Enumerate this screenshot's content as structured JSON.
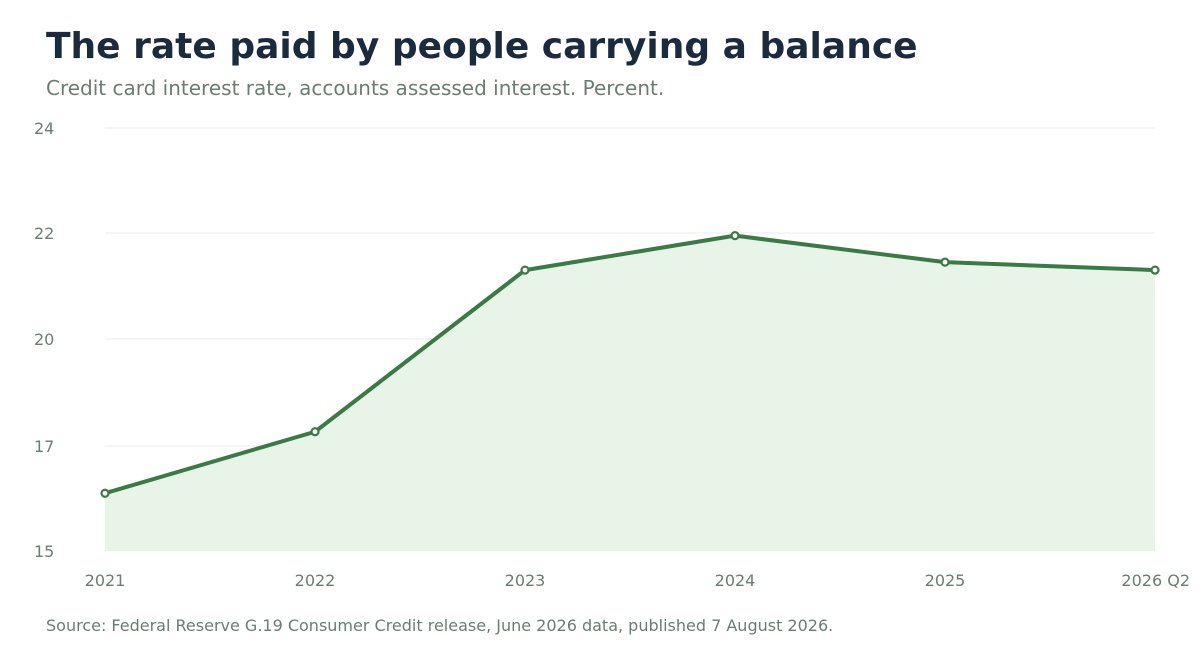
{
  "header": {
    "title": "The rate paid by people carrying a balance",
    "subtitle": "Credit card interest rate, accounts assessed interest. Percent."
  },
  "footer": {
    "source": "Source: Federal Reserve G.19 Consumer Credit release, June 2026 data, published 7 August 2026."
  },
  "colors": {
    "line": "#3a7a44",
    "area": "#e9f4e9",
    "grid": "#e8ecea",
    "marker_fill": "#ffffff"
  },
  "chart_data": {
    "type": "area",
    "title": "The rate paid by people carrying a balance",
    "subtitle": "Credit card interest rate, accounts assessed interest. Percent.",
    "categories": [
      "2021",
      "2022",
      "2023",
      "2024",
      "2025",
      "2026 Q2"
    ],
    "series": [
      {
        "values": [
          16.1,
          17.4,
          21.3,
          21.95,
          21.45,
          21.3
        ]
      }
    ],
    "y_ticks": [
      {
        "value": 15,
        "label": "15"
      },
      {
        "value": 17,
        "label": "17"
      },
      {
        "value": 20,
        "label": "20"
      },
      {
        "value": 22,
        "label": "22"
      },
      {
        "value": 24,
        "label": "24"
      }
    ],
    "ylim": [
      15,
      23
    ],
    "xlabel": "",
    "ylabel": "",
    "grid": true,
    "legend": "none"
  }
}
